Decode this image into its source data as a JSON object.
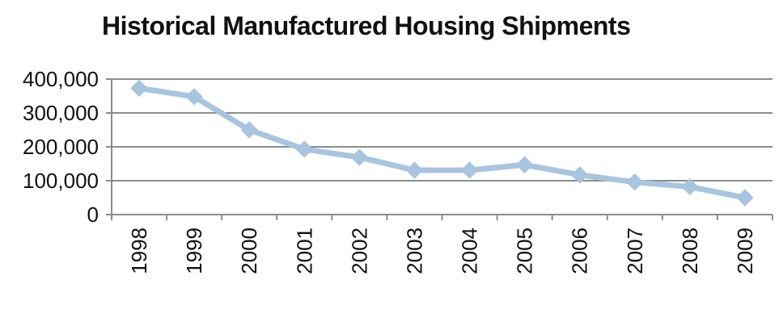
{
  "chart_data": {
    "type": "line",
    "title": "Historical Manufactured Housing Shipments",
    "xlabel": "",
    "ylabel": "",
    "categories": [
      "1998",
      "1999",
      "2000",
      "2001",
      "2002",
      "2003",
      "2004",
      "2005",
      "2006",
      "2007",
      "2008",
      "2009"
    ],
    "series": [
      {
        "values": [
          373000,
          348000,
          250000,
          193000,
          169000,
          131000,
          131000,
          147000,
          117000,
          96000,
          82000,
          50000
        ]
      }
    ],
    "ylim": [
      0,
      400000
    ],
    "yticks": [
      0,
      100000,
      200000,
      300000,
      400000
    ],
    "ytick_labels": [
      "0",
      "100,000",
      "200,000",
      "300,000",
      "400,000"
    ],
    "grid": "horizontal",
    "legend": "none",
    "marker": "diamond",
    "colors": {
      "line": "#a9c4de",
      "marker": "#a9c4de",
      "grid": "#8c8c8c",
      "axis": "#8c8c8c"
    }
  }
}
